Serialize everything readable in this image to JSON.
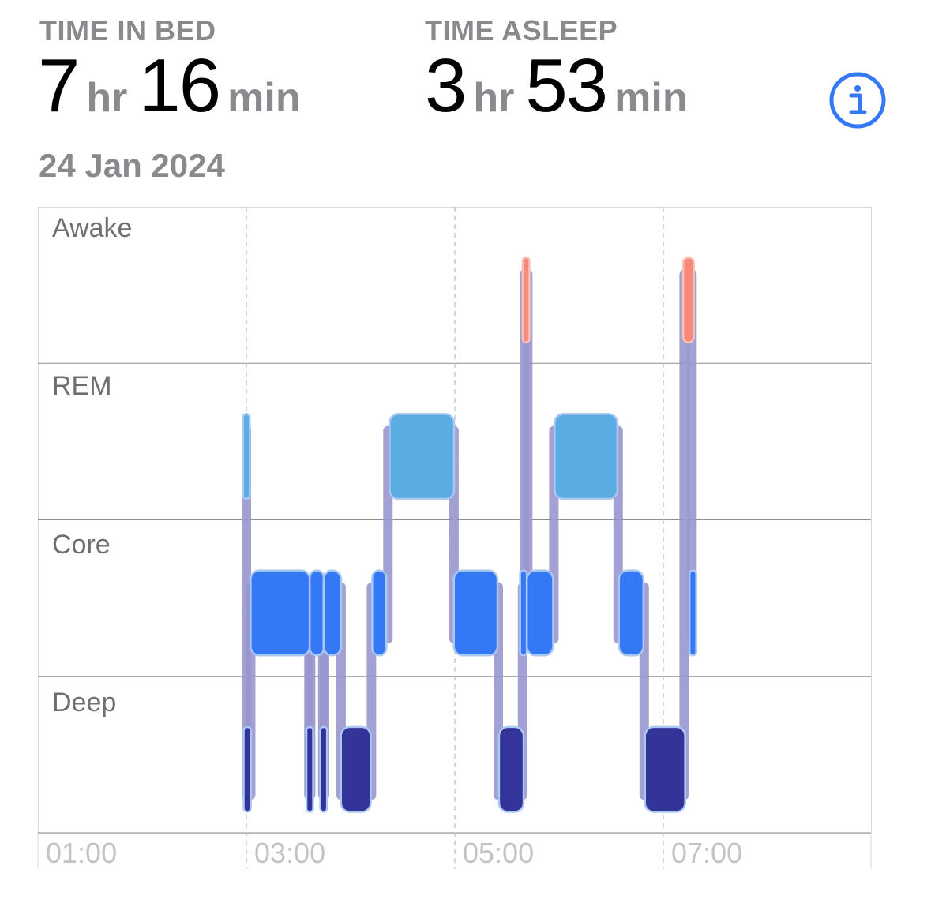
{
  "summary": {
    "time_in_bed": {
      "label": "TIME IN BED",
      "hours": "7",
      "hours_unit": "hr",
      "minutes": "16",
      "minutes_unit": "min"
    },
    "time_asleep": {
      "label": "TIME ASLEEP",
      "hours": "3",
      "hours_unit": "hr",
      "minutes": "53",
      "minutes_unit": "min"
    },
    "date": "24 Jan 2024",
    "info_icon": "info-circle-icon"
  },
  "colors": {
    "awake": "#f58a7a",
    "rem": "#5aace3",
    "core": "#3478f6",
    "deep": "#34339a",
    "info": "#3478f6"
  },
  "chart_data": {
    "type": "sleep-stages",
    "stages": [
      "Awake",
      "REM",
      "Core",
      "Deep"
    ],
    "x_ticks": [
      "01:00",
      "03:00",
      "05:00",
      "07:00"
    ],
    "x_range": [
      "01:00",
      "09:00"
    ],
    "grid": true,
    "segments": [
      {
        "stage": "REM",
        "start": "02:59",
        "end": "03:01"
      },
      {
        "stage": "Deep",
        "start": "02:59",
        "end": "03:02"
      },
      {
        "stage": "Core",
        "start": "03:03",
        "end": "03:36"
      },
      {
        "stage": "Deep",
        "start": "03:36",
        "end": "03:37"
      },
      {
        "stage": "Core",
        "start": "03:37",
        "end": "03:44"
      },
      {
        "stage": "Deep",
        "start": "03:44",
        "end": "03:45"
      },
      {
        "stage": "Core",
        "start": "03:45",
        "end": "03:54"
      },
      {
        "stage": "Deep",
        "start": "03:55",
        "end": "04:11"
      },
      {
        "stage": "Core",
        "start": "04:13",
        "end": "04:20"
      },
      {
        "stage": "REM",
        "start": "04:23",
        "end": "04:59"
      },
      {
        "stage": "Core",
        "start": "05:00",
        "end": "05:24"
      },
      {
        "stage": "Deep",
        "start": "05:26",
        "end": "05:39"
      },
      {
        "stage": "Core",
        "start": "05:39",
        "end": "05:40"
      },
      {
        "stage": "Awake",
        "start": "05:40",
        "end": "05:42"
      },
      {
        "stage": "Core",
        "start": "05:42",
        "end": "05:56"
      },
      {
        "stage": "REM",
        "start": "05:58",
        "end": "06:33"
      },
      {
        "stage": "Core",
        "start": "06:35",
        "end": "06:48"
      },
      {
        "stage": "Deep",
        "start": "06:50",
        "end": "07:12"
      },
      {
        "stage": "Awake",
        "start": "07:12",
        "end": "07:17"
      },
      {
        "stage": "Core",
        "start": "07:16",
        "end": "07:18"
      }
    ]
  }
}
